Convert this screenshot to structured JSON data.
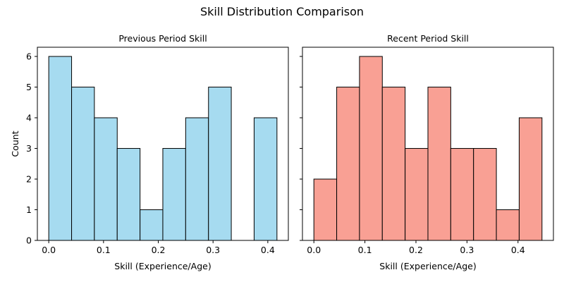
{
  "title": "Skill Distribution Comparison",
  "chart_data": [
    {
      "type": "bar",
      "title": "Previous Period Skill",
      "xlabel": "Skill (Experience/Age)",
      "ylabel": "Count",
      "bin_edges": [
        0.0,
        0.0417,
        0.0833,
        0.125,
        0.1667,
        0.2083,
        0.25,
        0.2917,
        0.3333,
        0.375,
        0.4167
      ],
      "values": [
        6,
        5,
        4,
        3,
        1,
        3,
        4,
        5,
        0,
        4
      ],
      "xlim": [
        -0.0208,
        0.4375
      ],
      "ylim": [
        0,
        6.3
      ],
      "xticks": [
        0.0,
        0.1,
        0.2,
        0.3,
        0.4
      ],
      "xtick_labels": [
        "0.0",
        "0.1",
        "0.2",
        "0.3",
        "0.4"
      ],
      "yticks": [
        0,
        1,
        2,
        3,
        4,
        5,
        6
      ],
      "ytick_labels": [
        "0",
        "1",
        "2",
        "3",
        "4",
        "5",
        "6"
      ],
      "color": "#a6dbf0",
      "edge_color": "#000000",
      "grid": false
    },
    {
      "type": "bar",
      "title": "Recent Period Skill",
      "xlabel": "Skill (Experience/Age)",
      "ylabel": "",
      "bin_edges": [
        0.0,
        0.0447,
        0.0894,
        0.1341,
        0.1788,
        0.2235,
        0.2682,
        0.3129,
        0.3576,
        0.4023,
        0.447
      ],
      "values": [
        2,
        5,
        6,
        5,
        3,
        5,
        3,
        3,
        1,
        4
      ],
      "xlim": [
        -0.0224,
        0.4694
      ],
      "ylim": [
        0,
        6.3
      ],
      "xticks": [
        0.0,
        0.1,
        0.2,
        0.3,
        0.4
      ],
      "xtick_labels": [
        "0.0",
        "0.1",
        "0.2",
        "0.3",
        "0.4"
      ],
      "yticks": [
        0,
        1,
        2,
        3,
        4,
        5,
        6
      ],
      "ytick_labels": [],
      "color": "#f9a094",
      "edge_color": "#000000",
      "grid": false
    }
  ]
}
